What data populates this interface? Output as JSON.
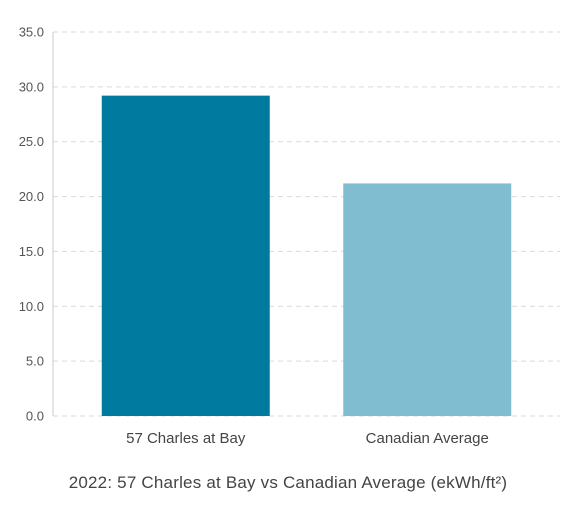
{
  "chart_data": {
    "type": "bar",
    "categories": [
      "57 Charles at Bay",
      "Canadian Average"
    ],
    "values": [
      29.2,
      21.2
    ],
    "colors": [
      "#007a9e",
      "#80bdd1"
    ],
    "ylim": [
      0,
      35
    ],
    "yticks": [
      "0.0",
      "5.0",
      "10.0",
      "15.0",
      "20.0",
      "25.0",
      "30.0",
      "35.0"
    ],
    "grid": true,
    "caption": "2022: 57 Charles at Bay vs Canadian Average (ekWh/ft²)"
  }
}
